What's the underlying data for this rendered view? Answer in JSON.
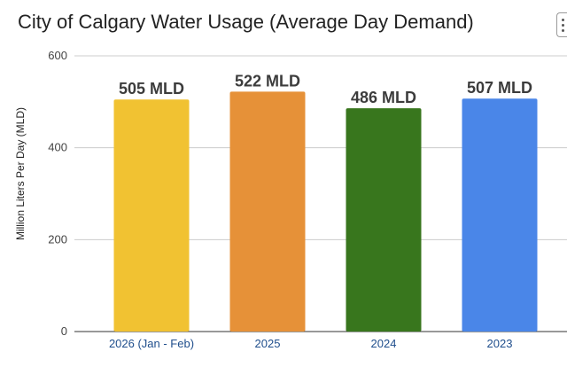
{
  "chart_data": {
    "type": "bar",
    "title": "City of Calgary Water Usage (Average Day Demand)",
    "xlabel": "",
    "ylabel": "Million Liters Per Day (MLD)",
    "categories": [
      "2026 (Jan - Feb)",
      "2025",
      "2024",
      "2023"
    ],
    "values": [
      505,
      522,
      486,
      507
    ],
    "data_labels": [
      "505 MLD",
      "522 MLD",
      "486 MLD",
      "507 MLD"
    ],
    "colors": [
      "#F1C232",
      "#E69138",
      "#38761D",
      "#4A86E8"
    ],
    "ylim": [
      0,
      600
    ],
    "yticks": [
      0,
      200,
      400,
      600
    ],
    "grid": true,
    "legend": "none"
  },
  "toolbar": {
    "menu_icon": "more-vert-icon"
  }
}
